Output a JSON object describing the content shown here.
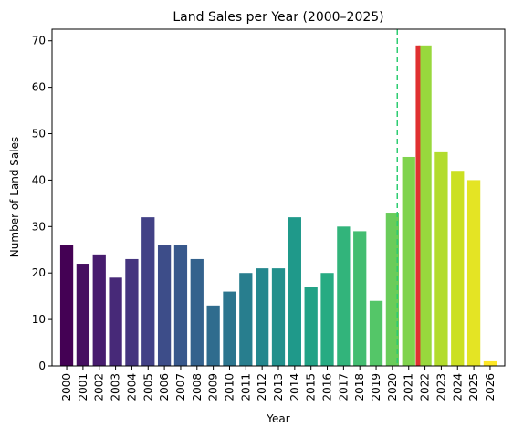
{
  "chart_data": {
    "type": "bar",
    "title": "Land Sales per Year (2000–2025)",
    "xlabel": "Year",
    "ylabel": "Number of Land Sales",
    "ylim": [
      0,
      72.5
    ],
    "yticks": [
      0,
      10,
      20,
      30,
      40,
      50,
      60,
      70
    ],
    "grid": false,
    "categories": [
      "2000",
      "2001",
      "2002",
      "2003",
      "2004",
      "2005",
      "2006",
      "2007",
      "2008",
      "2009",
      "2010",
      "2011",
      "2012",
      "2013",
      "2014",
      "2015",
      "2016",
      "2017",
      "2018",
      "2019",
      "2020",
      "2021",
      "2022",
      "2023",
      "2024",
      "2025",
      "2026"
    ],
    "values": [
      26,
      22,
      24,
      19,
      23,
      32,
      26,
      26,
      23,
      13,
      16,
      20,
      21,
      21,
      32,
      17,
      20,
      30,
      29,
      14,
      33,
      45,
      69,
      46,
      42,
      40,
      1
    ],
    "colors": [
      "#440154",
      "#482173",
      "#433e85",
      "#38598c",
      "#2d708e",
      "#25858e",
      "#1e9b8a",
      "#2ab07f",
      "#52c569",
      "#86d549",
      "#c2df23",
      "#fde725"
    ],
    "annotations": {
      "vline_year": "2020",
      "vline_color": "#2ecc71",
      "vline_style": "dashed",
      "highlight_year": "2022",
      "highlight_value": 69,
      "highlight_color": "#e03030"
    }
  }
}
